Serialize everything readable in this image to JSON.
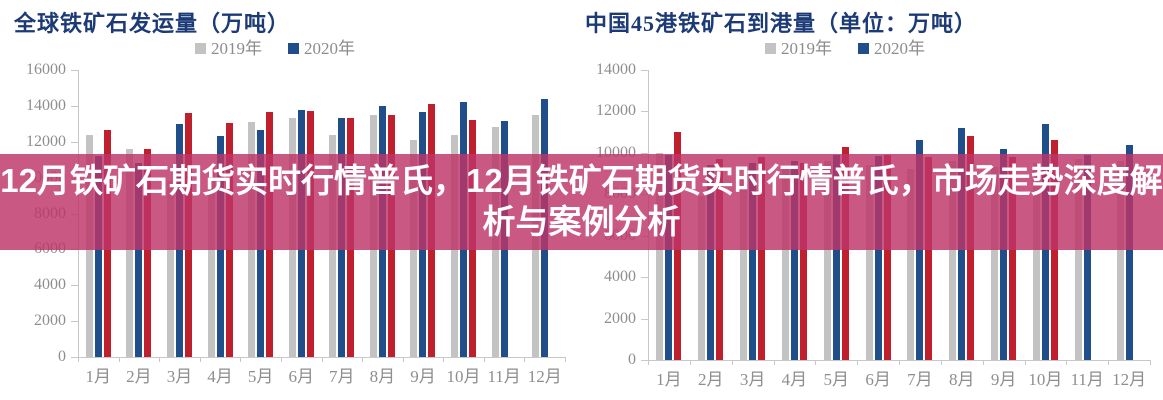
{
  "overlay": {
    "lines": [
      "12月铁矿石期货实时行情普氏，12月铁矿石期货实时行情普氏，市场走势深度解",
      "析与案例分析"
    ],
    "background": "rgba(189,52,104,0.82)",
    "text_color": "#ffffff"
  },
  "colors": {
    "series_2019": "#c3c3c3",
    "series_2020": "#1f4e8b",
    "series_red": "#c0202d",
    "title_text": "#1c3b76",
    "axis_text": "#8e8e8e",
    "axis_line": "#c8c8c8",
    "legend_text": "#8c8c8c"
  },
  "chart_data": [
    {
      "type": "bar",
      "title": "全球铁矿石发运量（万吨）",
      "legend": [
        "2019年",
        "2020年"
      ],
      "legend_position": "top-center",
      "grid": false,
      "ylim": [
        0,
        16000
      ],
      "yticks": [
        0,
        2000,
        4000,
        6000,
        8000,
        10000,
        12000,
        14000,
        16000
      ],
      "categories": [
        "1月",
        "2月",
        "3月",
        "4月",
        "5月",
        "6月",
        "7月",
        "8月",
        "9月",
        "10月",
        "11月",
        "12月"
      ],
      "series": [
        {
          "label": "2019年",
          "color_key": "series_2019",
          "values": [
            12400,
            11600,
            9800,
            10600,
            13100,
            13300,
            12400,
            13500,
            12100,
            12400,
            12800,
            13500
          ]
        },
        {
          "label": "2020年",
          "color_key": "series_2020",
          "values": [
            11200,
            10800,
            13000,
            12300,
            12650,
            13750,
            13300,
            14000,
            13650,
            14200,
            13150,
            14400
          ]
        },
        {
          "label": "",
          "color_key": "series_red",
          "values": [
            12650,
            11600,
            13600,
            13050,
            13650,
            13700,
            13300,
            13500,
            14100,
            13200,
            null,
            null
          ]
        }
      ]
    },
    {
      "type": "bar",
      "title": "中国45港铁矿石到港量（单位：万吨）",
      "legend": [
        "2019年",
        "2020年"
      ],
      "legend_position": "top-center",
      "grid": false,
      "ylim": [
        0,
        14000
      ],
      "yticks": [
        0,
        2000,
        4000,
        6000,
        8000,
        10000,
        12000,
        14000
      ],
      "categories": [
        "1月",
        "2月",
        "3月",
        "4月",
        "5月",
        "6月",
        "7月",
        "8月",
        "9月",
        "10月",
        "11月",
        "12月"
      ],
      "series": [
        {
          "label": "2019年",
          "color_key": "series_2019",
          "values": [
            10000,
            7900,
            8800,
            9300,
            9600,
            9400,
            9200,
            9600,
            9300,
            9500,
            9700,
            9600
          ]
        },
        {
          "label": "2020年",
          "color_key": "series_2020",
          "values": [
            9900,
            9400,
            9500,
            9600,
            9900,
            9850,
            10600,
            11200,
            10200,
            11400,
            9900,
            10400
          ]
        },
        {
          "label": "",
          "color_key": "series_red",
          "values": [
            11000,
            9700,
            9800,
            9500,
            10300,
            9900,
            9800,
            10800,
            9800,
            10600,
            null,
            null
          ]
        }
      ]
    }
  ]
}
